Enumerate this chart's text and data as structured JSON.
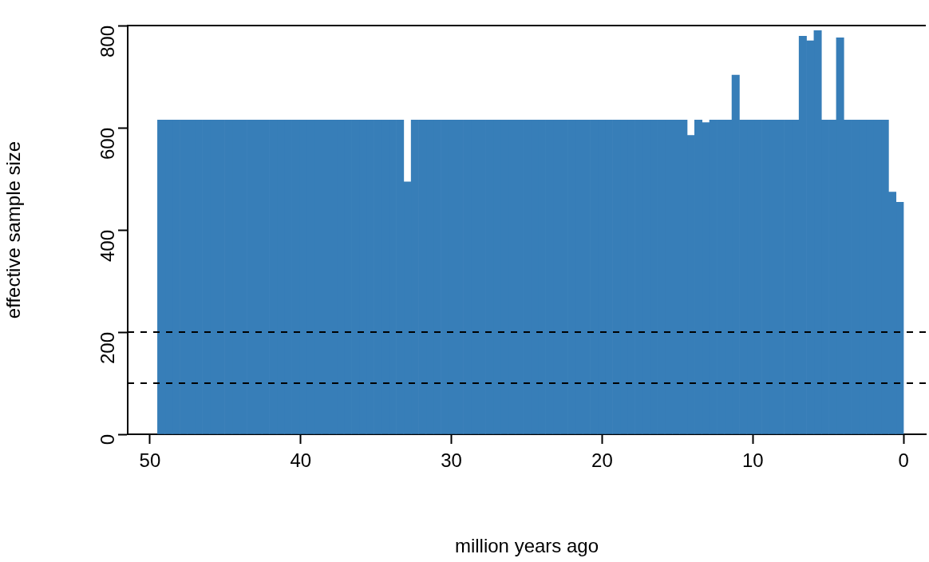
{
  "chart_data": {
    "type": "histogram",
    "xlabel": "million years ago",
    "ylabel": "effective sample size",
    "color": "#377eb8",
    "bins": [
      0,
      0.495,
      0.99,
      1.485,
      1.98,
      2.475,
      2.97,
      3.465,
      3.96,
      4.455,
      4.95,
      5.445,
      5.94,
      6.435,
      6.93,
      7.425,
      7.92,
      8.415,
      8.91,
      9.405,
      9.9,
      10.395,
      10.89,
      11.385,
      11.88,
      12.375,
      12.87,
      13.365,
      13.86,
      14.355,
      14.85,
      15.345,
      15.84,
      16.335,
      16.83,
      17.325,
      17.82,
      18.315,
      18.81,
      19.305,
      19.8,
      20.295,
      20.79,
      21.285,
      21.78,
      22.275,
      22.77,
      23.265,
      23.76,
      24.255,
      24.75,
      25.245,
      25.74,
      26.235,
      26.73,
      27.225,
      27.72,
      28.215,
      28.71,
      29.205,
      29.7,
      30.195,
      30.69,
      31.185,
      31.68,
      32.175,
      32.67,
      33.165,
      33.66,
      34.155,
      34.65,
      35.145,
      35.64,
      36.135,
      36.63,
      37.125,
      37.62,
      38.115,
      38.61,
      39.105,
      39.6,
      40.095,
      40.59,
      41.085,
      41.58,
      42.075,
      42.57,
      43.065,
      43.56,
      44.055,
      44.55,
      45.045,
      45.54,
      46.035,
      46.53,
      47.025,
      47.52,
      48.015,
      48.51,
      49.005,
      49.5
    ],
    "values": [
      454,
      474,
      615,
      615,
      615,
      615,
      615,
      615,
      776,
      615,
      615,
      790,
      770,
      779,
      615,
      615,
      615,
      615,
      615,
      615,
      615,
      615,
      703,
      615,
      615,
      615,
      610,
      615,
      585,
      615,
      615,
      615,
      615,
      615,
      615,
      615,
      615,
      615,
      615,
      615,
      615,
      615,
      615,
      615,
      615,
      615,
      615,
      615,
      615,
      615,
      615,
      615,
      615,
      615,
      615,
      615,
      615,
      615,
      615,
      615,
      615,
      615,
      615,
      615,
      615,
      615,
      494,
      615,
      615,
      615,
      615,
      615,
      615,
      615,
      615,
      615,
      615,
      615,
      615,
      615,
      615,
      615,
      615,
      615,
      615,
      615,
      615,
      615,
      615,
      615,
      615,
      615,
      615,
      615,
      615,
      615,
      615,
      615,
      615,
      615
    ],
    "xlim": [
      51.48,
      -1.48
    ],
    "ylim": [
      0,
      800
    ],
    "xticks": [
      50,
      40,
      30,
      20,
      10,
      0
    ],
    "yticks": [
      0,
      200,
      400,
      600,
      800
    ],
    "ref_lines": [
      {
        "axis": "y",
        "value": 200,
        "color": "#000000",
        "line_style": "dashed"
      },
      {
        "axis": "y",
        "value": 100,
        "color": "#000000",
        "line_style": "dashed"
      }
    ]
  }
}
